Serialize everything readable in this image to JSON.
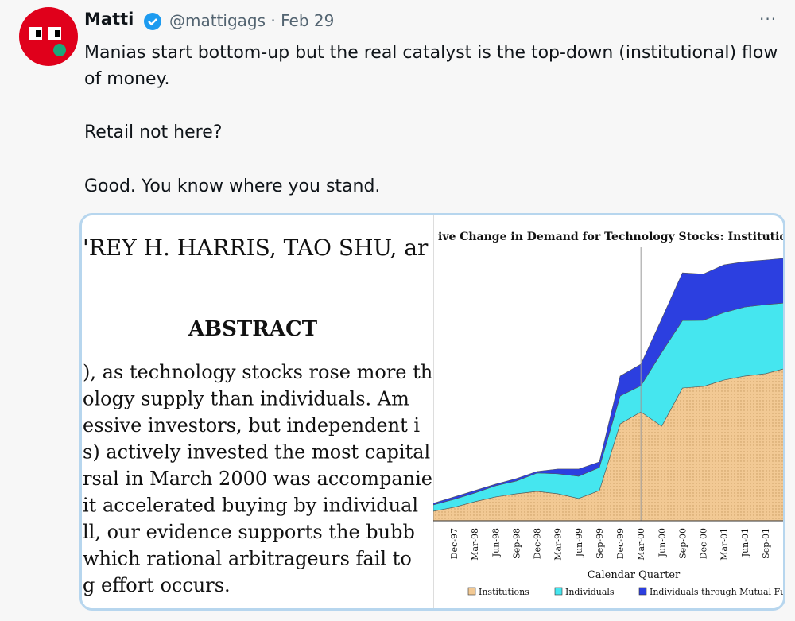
{
  "tweet": {
    "name": "Matti",
    "handle_date": "@mattigags · Feb 29",
    "more": "···",
    "paragraphs": [
      "Manias start bottom-up but the real catalyst is the top-down (institutional) flow of money.",
      "Retail not here?",
      "Good. You know where you stand."
    ]
  },
  "image": {
    "paper": {
      "authors": "'REY H. HARRIS, TAO SHU, ar",
      "heading": "ABSTRACT",
      "lines": [
        "), as technology stocks rose more th",
        "ology supply than individuals. Am",
        "essive investors, but independent i",
        "s) actively invested the most capital",
        "rsal in March 2000 was accompanie",
        "it accelerated buying by individual",
        "ll, our evidence supports the bubb",
        " which rational arbitrageurs fail to",
        "g effort occurs."
      ]
    },
    "chart": {
      "type": "area",
      "title": "ive Change in Demand for Technology Stocks: Institutions an",
      "x_label": "Calendar Quarter",
      "stacked": true,
      "ylim": [
        0,
        100
      ],
      "categories": [
        null,
        "Dec-97",
        "Mar-98",
        "Jun-98",
        "Sep-98",
        "Dec-98",
        "Mar-99",
        "Jun-99",
        "Sep-99",
        "Dec-99",
        "Mar-00",
        "Jun-00",
        "Sep-00",
        "Dec-00",
        "Mar-01",
        "Jun-01",
        "Sep-01",
        null
      ],
      "series": [
        {
          "name": "Institutions",
          "color": "#f2c994",
          "values": [
            3.6,
            5.1,
            7.2,
            9.0,
            10.2,
            11.1,
            10.2,
            8.4,
            11.4,
            36.5,
            41.0,
            35.6,
            50.0,
            50.6,
            53.0,
            54.5,
            55.4,
            57.5
          ]
        },
        {
          "name": "Individuals",
          "color": "#45e6ef",
          "values": [
            2.4,
            3.0,
            3.3,
            4.2,
            4.8,
            6.9,
            7.5,
            8.4,
            8.7,
            10.5,
            9.9,
            27.8,
            25.4,
            24.9,
            25.4,
            26.0,
            26.0,
            24.6
          ]
        },
        {
          "name": "Individuals through Mutual Fu",
          "color": "#2c3fe0",
          "values": [
            0.6,
            0.9,
            0.9,
            0.6,
            0.9,
            0.6,
            1.8,
            2.7,
            2.1,
            7.5,
            8.1,
            12.6,
            18.0,
            17.4,
            18.0,
            17.1,
            16.8,
            16.8
          ]
        }
      ]
    }
  }
}
